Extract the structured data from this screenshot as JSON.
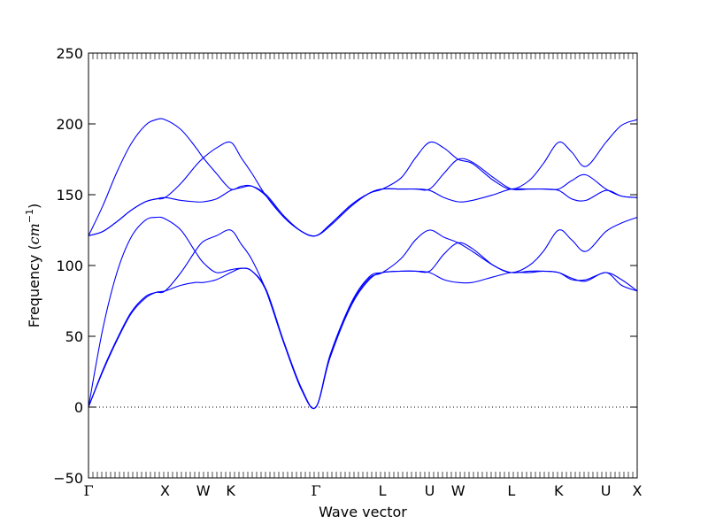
{
  "chart_data": {
    "type": "line",
    "xlabel": "Wave vector",
    "ylabel": {
      "prefix": "Frequency (",
      "unit_base": "cm",
      "unit_exp": "−1",
      "suffix": ")"
    },
    "ylim": [
      -50,
      250
    ],
    "yticks": [
      -50,
      0,
      50,
      100,
      150,
      200,
      250
    ],
    "xlim": [
      0,
      7.72
    ],
    "zero_line": "dotted",
    "grid": false,
    "legend": "none",
    "line_color": "#0000ff",
    "special_points": [
      {
        "label": "Γ",
        "x": 0.0
      },
      {
        "label": "X",
        "x": 1.077
      },
      {
        "label": "W",
        "x": 1.615
      },
      {
        "label": "K",
        "x": 2.0
      },
      {
        "label": "Γ",
        "x": 3.2
      },
      {
        "label": "L",
        "x": 4.135
      },
      {
        "label": "U",
        "x": 4.8
      },
      {
        "label": "W",
        "x": 5.2
      },
      {
        "label": "L",
        "x": 5.95
      },
      {
        "label": "K",
        "x": 6.615
      },
      {
        "label": "U",
        "x": 7.28
      },
      {
        "label": "X",
        "x": 7.72
      }
    ],
    "series": [
      {
        "x": [
          0,
          0.2,
          0.4,
          0.6,
          0.8,
          0.95,
          1.077,
          1.3,
          1.5,
          1.615,
          1.8,
          2.0,
          2.15,
          2.3,
          2.5,
          2.75,
          3.0,
          3.2,
          3.4,
          3.7,
          3.95,
          4.135,
          4.4,
          4.6,
          4.8,
          5.0,
          5.2,
          5.4,
          5.7,
          5.95,
          6.2,
          6.4,
          6.615,
          6.8,
          7.0,
          7.28,
          7.5,
          7.72
        ],
        "y": [
          0,
          25,
          47,
          66,
          77,
          81,
          82,
          86,
          88,
          88,
          90,
          95,
          98,
          96,
          82,
          45,
          12,
          0,
          35,
          72,
          90,
          95,
          96,
          96,
          95,
          90,
          88,
          88,
          92,
          95,
          95,
          96,
          95,
          91,
          89,
          95,
          86,
          82
        ]
      },
      {
        "x": [
          0,
          0.2,
          0.4,
          0.6,
          0.8,
          0.95,
          1.077,
          1.3,
          1.5,
          1.615,
          1.8,
          2.0,
          2.15,
          2.3,
          2.5,
          2.75,
          3.0,
          3.2,
          3.4,
          3.7,
          3.95,
          4.135,
          4.4,
          4.6,
          4.8,
          5.0,
          5.2,
          5.4,
          5.7,
          5.95,
          6.2,
          6.4,
          6.615,
          6.8,
          7.0,
          7.28,
          7.5,
          7.72
        ],
        "y": [
          0,
          26,
          48,
          67,
          78,
          81,
          82,
          95,
          110,
          117,
          121,
          125,
          115,
          104,
          82,
          45,
          12,
          0,
          36,
          73,
          91,
          95,
          105,
          118,
          125,
          120,
          116,
          110,
          100,
          95,
          100,
          110,
          125,
          118,
          110,
          124,
          130,
          134
        ]
      },
      {
        "x": [
          0,
          0.2,
          0.4,
          0.6,
          0.8,
          0.95,
          1.077,
          1.3,
          1.5,
          1.615,
          1.8,
          2.0,
          2.15,
          2.3,
          2.5,
          2.75,
          3.0,
          3.2,
          3.4,
          3.7,
          3.95,
          4.135,
          4.4,
          4.6,
          4.8,
          5.0,
          5.2,
          5.4,
          5.7,
          5.95,
          6.2,
          6.4,
          6.615,
          6.8,
          7.0,
          7.28,
          7.5,
          7.72
        ],
        "y": [
          0,
          55,
          95,
          120,
          132,
          134,
          133,
          125,
          110,
          102,
          95,
          97,
          98,
          96,
          83,
          46,
          13,
          0,
          37,
          74,
          92,
          95,
          96,
          96,
          96,
          108,
          116,
          112,
          100,
          95,
          96,
          96,
          95,
          90,
          90,
          95,
          90,
          82
        ]
      },
      {
        "x": [
          0,
          0.2,
          0.4,
          0.6,
          0.8,
          0.95,
          1.077,
          1.3,
          1.5,
          1.615,
          1.8,
          2.0,
          2.15,
          2.3,
          2.5,
          2.75,
          3.0,
          3.2,
          3.4,
          3.7,
          3.95,
          4.135,
          4.4,
          4.6,
          4.8,
          5.0,
          5.2,
          5.4,
          5.7,
          5.95,
          6.2,
          6.4,
          6.615,
          6.8,
          7.0,
          7.28,
          7.5,
          7.72
        ],
        "y": [
          121,
          124,
          131,
          139,
          145,
          147,
          148,
          146,
          145,
          145,
          147,
          153,
          155,
          156,
          150,
          135,
          124,
          121,
          128,
          142,
          151,
          154,
          154,
          154,
          153,
          148,
          145,
          146,
          150,
          154,
          154,
          154,
          153,
          147,
          146,
          153,
          149,
          148
        ]
      },
      {
        "x": [
          0,
          0.2,
          0.4,
          0.6,
          0.8,
          0.95,
          1.077,
          1.3,
          1.5,
          1.615,
          1.8,
          2.0,
          2.15,
          2.3,
          2.5,
          2.75,
          3.0,
          3.2,
          3.4,
          3.7,
          3.95,
          4.135,
          4.4,
          4.6,
          4.8,
          5.0,
          5.2,
          5.4,
          5.7,
          5.95,
          6.2,
          6.4,
          6.615,
          6.8,
          7.0,
          7.28,
          7.5,
          7.72
        ],
        "y": [
          121,
          124,
          131,
          139,
          145,
          147,
          148,
          158,
          170,
          176,
          183,
          187,
          176,
          165,
          149,
          134,
          124,
          121,
          129,
          143,
          151,
          154,
          162,
          176,
          187,
          183,
          175,
          172,
          160,
          154,
          160,
          172,
          187,
          180,
          170,
          187,
          199,
          203
        ]
      },
      {
        "x": [
          0,
          0.2,
          0.4,
          0.6,
          0.8,
          0.95,
          1.077,
          1.3,
          1.5,
          1.615,
          1.8,
          2.0,
          2.15,
          2.3,
          2.5,
          2.75,
          3.0,
          3.2,
          3.4,
          3.7,
          3.95,
          4.135,
          4.4,
          4.6,
          4.8,
          5.0,
          5.2,
          5.4,
          5.7,
          5.95,
          6.2,
          6.4,
          6.615,
          6.8,
          7.0,
          7.28,
          7.5,
          7.72
        ],
        "y": [
          121,
          142,
          166,
          186,
          199,
          203,
          203,
          196,
          184,
          176,
          165,
          154,
          156,
          156,
          149,
          134,
          124,
          121,
          129,
          143,
          151,
          154,
          154,
          154,
          154,
          165,
          175,
          173,
          162,
          154,
          154,
          154,
          154,
          160,
          164,
          154,
          149,
          148
        ]
      }
    ]
  }
}
